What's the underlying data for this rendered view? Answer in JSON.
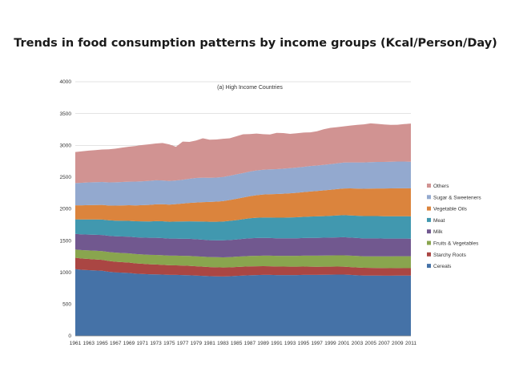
{
  "page": {
    "title": "Trends in food consumption patterns by income groups (Kcal/Person/Day)"
  },
  "chart_data": {
    "type": "area",
    "stacked": true,
    "subtitle": "(a) High Income Countries",
    "xlabel": "",
    "ylabel": "",
    "ylim": [
      0,
      4000
    ],
    "yticks": [
      0,
      500,
      1000,
      1500,
      2000,
      2500,
      3000,
      3500,
      4000
    ],
    "x": [
      1961,
      1962,
      1963,
      1964,
      1965,
      1966,
      1967,
      1968,
      1969,
      1970,
      1971,
      1972,
      1973,
      1974,
      1975,
      1976,
      1977,
      1978,
      1979,
      1980,
      1981,
      1982,
      1983,
      1984,
      1985,
      1986,
      1987,
      1988,
      1989,
      1990,
      1991,
      1992,
      1993,
      1994,
      1995,
      1996,
      1997,
      1998,
      1999,
      2000,
      2001,
      2002,
      2003,
      2004,
      2005,
      2006,
      2007,
      2008,
      2009,
      2010,
      2011
    ],
    "xtick_labels": [
      "1961",
      "1963",
      "1965",
      "1967",
      "1969",
      "1971",
      "1973",
      "1975",
      "1977",
      "1979",
      "1981",
      "1983",
      "1985",
      "1987",
      "1989",
      "1991",
      "1993",
      "1995",
      "1997",
      "1999",
      "2001",
      "2003",
      "2005",
      "2007",
      "2009",
      "2011"
    ],
    "legend_position": "right",
    "series": [
      {
        "name": "Cereals",
        "color": "#4572a7",
        "values": [
          1050,
          1040,
          1035,
          1030,
          1025,
          1010,
          1000,
          995,
          990,
          980,
          975,
          970,
          968,
          965,
          960,
          960,
          958,
          955,
          950,
          945,
          940,
          937,
          935,
          938,
          945,
          950,
          955,
          958,
          960,
          960,
          958,
          957,
          957,
          958,
          960,
          960,
          960,
          962,
          963,
          965,
          965,
          960,
          955,
          950,
          950,
          950,
          948,
          948,
          950,
          950,
          950
        ]
      },
      {
        "name": "Starchy Roots",
        "color": "#aa4643",
        "values": [
          180,
          178,
          176,
          174,
          172,
          170,
          168,
          166,
          164,
          162,
          160,
          158,
          156,
          154,
          152,
          150,
          149,
          148,
          146,
          145,
          144,
          143,
          142,
          141,
          140,
          140,
          139,
          138,
          137,
          136,
          135,
          134,
          133,
          132,
          131,
          130,
          129,
          128,
          127,
          126,
          125,
          124,
          123,
          122,
          121,
          120,
          120,
          119,
          118,
          117,
          116
        ]
      },
      {
        "name": "Fruits & Vegetables",
        "color": "#89a54e",
        "values": [
          130,
          132,
          134,
          136,
          138,
          140,
          142,
          144,
          145,
          146,
          147,
          148,
          150,
          151,
          152,
          153,
          154,
          155,
          156,
          157,
          158,
          159,
          160,
          161,
          162,
          163,
          164,
          165,
          166,
          167,
          168,
          169,
          170,
          171,
          172,
          173,
          174,
          175,
          176,
          177,
          178,
          179,
          180,
          181,
          182,
          183,
          184,
          185,
          186,
          187,
          188
        ]
      },
      {
        "name": "Milk",
        "color": "#71588f",
        "values": [
          245,
          248,
          250,
          252,
          254,
          256,
          258,
          260,
          262,
          264,
          266,
          268,
          270,
          270,
          268,
          268,
          268,
          270,
          270,
          268,
          265,
          265,
          268,
          270,
          270,
          275,
          278,
          280,
          280,
          278,
          276,
          276,
          276,
          276,
          278,
          280,
          280,
          280,
          282,
          283,
          285,
          284,
          283,
          282,
          282,
          281,
          280,
          280,
          278,
          278,
          276
        ]
      },
      {
        "name": "Meat",
        "color": "#4198af",
        "values": [
          230,
          235,
          238,
          240,
          242,
          244,
          246,
          248,
          250,
          252,
          255,
          258,
          262,
          264,
          265,
          268,
          272,
          275,
          280,
          285,
          290,
          292,
          295,
          300,
          305,
          310,
          315,
          318,
          320,
          322,
          324,
          326,
          328,
          330,
          332,
          335,
          338,
          340,
          342,
          345,
          347,
          349,
          350,
          351,
          352,
          352,
          352,
          352,
          352,
          352,
          352
        ]
      },
      {
        "name": "Vegetable Oils",
        "color": "#db843d",
        "values": [
          220,
          222,
          225,
          228,
          230,
          232,
          236,
          240,
          245,
          250,
          255,
          260,
          265,
          268,
          270,
          275,
          282,
          290,
          298,
          305,
          312,
          318,
          322,
          328,
          335,
          340,
          348,
          355,
          362,
          368,
          372,
          376,
          380,
          385,
          390,
          395,
          400,
          405,
          410,
          415,
          420,
          425,
          428,
          430,
          432,
          434,
          436,
          438,
          440,
          440,
          440
        ]
      },
      {
        "name": "Sugar & Sweeteners",
        "color": "#93a9cf",
        "values": [
          350,
          355,
          358,
          360,
          362,
          365,
          368,
          370,
          372,
          375,
          376,
          378,
          378,
          375,
          372,
          372,
          375,
          380,
          385,
          385,
          380,
          378,
          380,
          382,
          385,
          385,
          388,
          390,
          390,
          390,
          392,
          394,
          396,
          398,
          398,
          400,
          400,
          402,
          404,
          405,
          408,
          410,
          412,
          414,
          416,
          418,
          418,
          420,
          420,
          420,
          420
        ]
      },
      {
        "name": "Others",
        "color": "#d19392",
        "values": [
          490,
          495,
          500,
          505,
          510,
          520,
          530,
          540,
          550,
          560,
          570,
          575,
          580,
          590,
          575,
          530,
          600,
          580,
          590,
          620,
          600,
          600,
          600,
          590,
          600,
          610,
          590,
          580,
          560,
          550,
          570,
          560,
          540,
          540,
          540,
          530,
          540,
          560,
          570,
          570,
          570,
          580,
          590,
          600,
          610,
          600,
          590,
          580,
          580,
          590,
          600
        ]
      }
    ]
  }
}
